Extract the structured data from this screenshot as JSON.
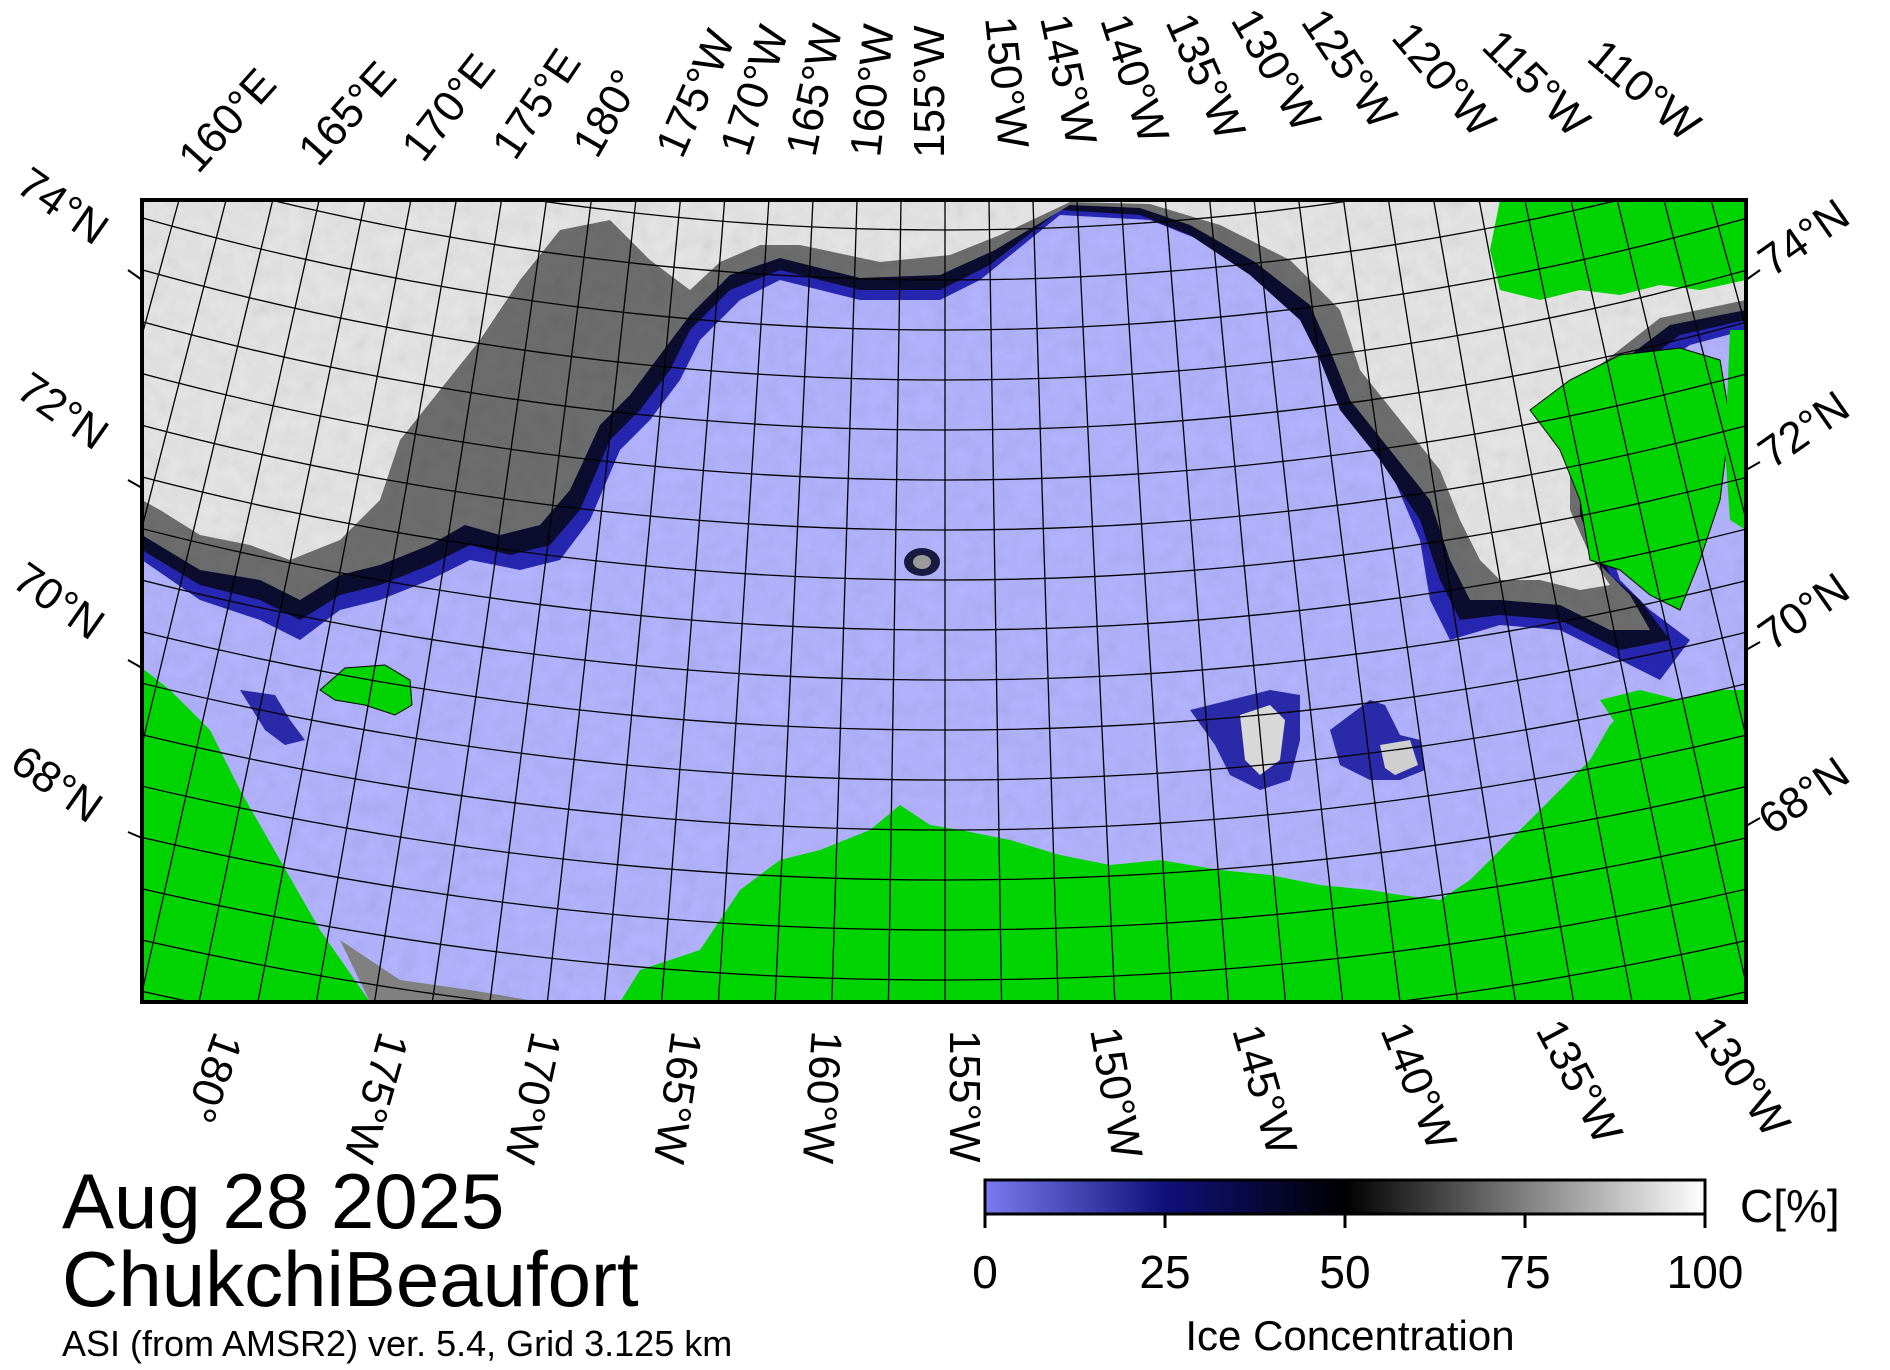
{
  "map": {
    "date": "Aug 28 2025",
    "region": "ChukchiBeaufort",
    "source": "ASI (from AMSR2) ver. 5.4,  Grid 3.125 km",
    "colors": {
      "land": "#00d400",
      "open_water": "#b4b4ff",
      "no_data": "#808080",
      "ice_low": "#0a0a78",
      "ice_mid": "#000000",
      "ice_high": "#ffffff"
    }
  },
  "top_lon_labels": [
    "160°E",
    "165°E",
    "170°E",
    "175°E",
    "180°",
    "175°W",
    "170°W",
    "165°W",
    "160°W",
    "155°W",
    "150°W",
    "145°W",
    "140°W",
    "135°W",
    "130°W",
    "125°W",
    "120°W",
    "115°W",
    "110°W"
  ],
  "bottom_lon_labels": [
    "180°",
    "175°W",
    "170°W",
    "165°W",
    "160°W",
    "155°W",
    "150°W",
    "145°W",
    "140°W",
    "135°W",
    "130°W"
  ],
  "left_lat_labels": [
    "74°N",
    "72°N",
    "70°N",
    "68°N"
  ],
  "right_lat_labels": [
    "74°N",
    "72°N",
    "70°N",
    "68°N"
  ],
  "colorbar": {
    "title": "Ice Concentration",
    "unit": "C[%]",
    "ticks": [
      "0",
      "25",
      "50",
      "75",
      "100"
    ]
  }
}
